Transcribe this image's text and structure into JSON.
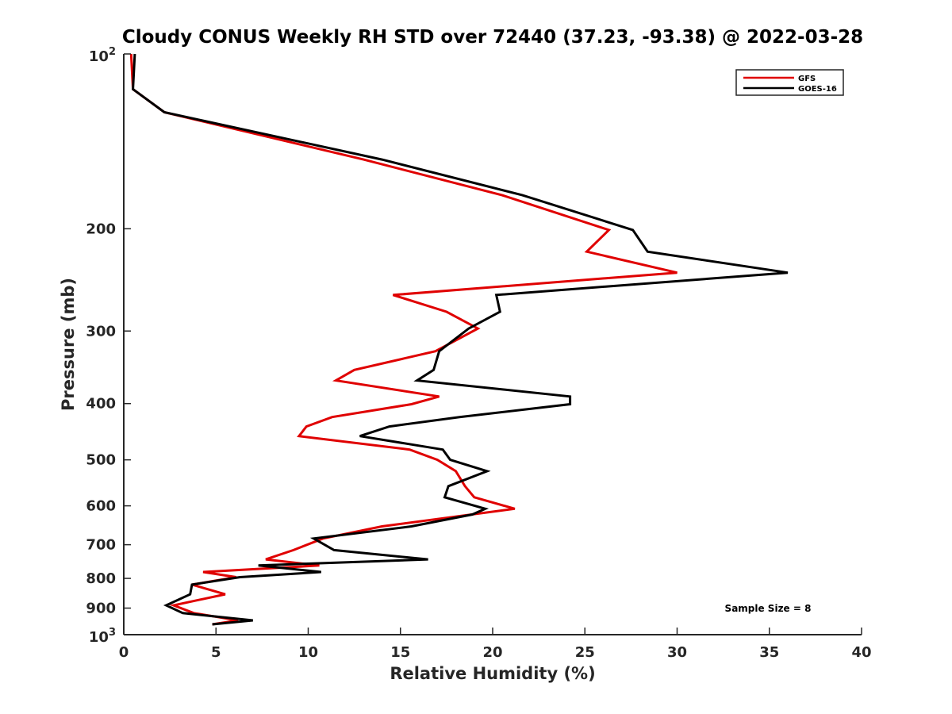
{
  "chart_data": {
    "type": "line",
    "title": "Cloudy CONUS Weekly RH STD over 72440 (37.23, -93.38) @ 2022-03-28",
    "xlabel": "Relative Humidity (%)",
    "ylabel": "Pressure (mb)",
    "xlim": [
      0,
      40
    ],
    "ylim": [
      100,
      1000
    ],
    "yscale": "log",
    "y_reversed": true,
    "grid": false,
    "x_ticks": [
      "0",
      "5",
      "10",
      "15",
      "20",
      "25",
      "30",
      "35",
      "40"
    ],
    "y_ticks": [
      {
        "value": 200,
        "label": "200"
      },
      {
        "value": 300,
        "label": "300"
      },
      {
        "value": 400,
        "label": "400"
      },
      {
        "value": 500,
        "label": "500"
      },
      {
        "value": 600,
        "label": "600"
      },
      {
        "value": 700,
        "label": "700"
      },
      {
        "value": 800,
        "label": "800"
      },
      {
        "value": 900,
        "label": "900"
      }
    ],
    "y_end_ticks": [
      {
        "value": 100,
        "base": "10",
        "exp": "2"
      },
      {
        "value": 1000,
        "base": "10",
        "exp": "3"
      }
    ],
    "legend_position": "top-right",
    "annotation": "Sample Size = 8",
    "series": [
      {
        "name": "GFS",
        "color": "#e00000",
        "points": [
          [
            0.4,
            100
          ],
          [
            0.5,
            115
          ],
          [
            2.2,
            126
          ],
          [
            13.0,
            152
          ],
          [
            20.5,
            175
          ],
          [
            26.3,
            201
          ],
          [
            25.1,
            219
          ],
          [
            30.0,
            238
          ],
          [
            14.6,
            260
          ],
          [
            17.5,
            278
          ],
          [
            19.2,
            297
          ],
          [
            16.9,
            325
          ],
          [
            12.5,
            350
          ],
          [
            11.5,
            365
          ],
          [
            17.1,
            389
          ],
          [
            15.6,
            401
          ],
          [
            11.3,
            422
          ],
          [
            9.9,
            438
          ],
          [
            9.5,
            455
          ],
          [
            15.5,
            480
          ],
          [
            17.0,
            500
          ],
          [
            18.0,
            523
          ],
          [
            18.5,
            555
          ],
          [
            19.0,
            580
          ],
          [
            21.2,
            607
          ],
          [
            14.0,
            651
          ],
          [
            10.8,
            683
          ],
          [
            9.2,
            715
          ],
          [
            7.7,
            742
          ],
          [
            10.6,
            760
          ],
          [
            4.3,
            780
          ],
          [
            6.1,
            796
          ],
          [
            3.7,
            820
          ],
          [
            5.5,
            852
          ],
          [
            2.7,
            890
          ],
          [
            3.8,
            918
          ],
          [
            6.2,
            945
          ],
          [
            4.8,
            960
          ]
        ]
      },
      {
        "name": "GOES-16",
        "color": "#000000",
        "points": [
          [
            0.6,
            100
          ],
          [
            0.5,
            115
          ],
          [
            2.2,
            126
          ],
          [
            14.0,
            152
          ],
          [
            21.6,
            175
          ],
          [
            27.6,
            201
          ],
          [
            28.4,
            219
          ],
          [
            36.0,
            238
          ],
          [
            20.2,
            260
          ],
          [
            20.4,
            278
          ],
          [
            18.7,
            297
          ],
          [
            17.1,
            325
          ],
          [
            16.8,
            350
          ],
          [
            15.9,
            365
          ],
          [
            24.2,
            389
          ],
          [
            24.2,
            401
          ],
          [
            18.2,
            422
          ],
          [
            14.4,
            438
          ],
          [
            12.8,
            455
          ],
          [
            17.3,
            480
          ],
          [
            17.7,
            500
          ],
          [
            19.7,
            523
          ],
          [
            17.6,
            555
          ],
          [
            17.4,
            580
          ],
          [
            19.6,
            607
          ],
          [
            18.9,
            621
          ],
          [
            15.6,
            651
          ],
          [
            10.3,
            683
          ],
          [
            11.4,
            715
          ],
          [
            16.5,
            742
          ],
          [
            7.3,
            760
          ],
          [
            10.7,
            780
          ],
          [
            6.3,
            796
          ],
          [
            3.7,
            820
          ],
          [
            3.6,
            852
          ],
          [
            2.3,
            890
          ],
          [
            3.2,
            918
          ],
          [
            7.0,
            945
          ],
          [
            4.8,
            960
          ]
        ]
      }
    ]
  }
}
